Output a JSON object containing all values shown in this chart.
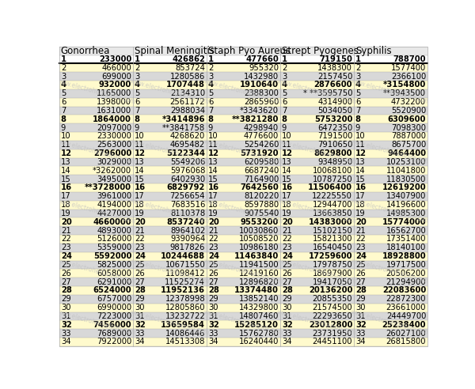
{
  "columns": [
    {
      "header": "Gonorrhea",
      "rows": [
        [
          1,
          "233000"
        ],
        [
          2,
          "466000"
        ],
        [
          3,
          "699000"
        ],
        [
          4,
          "932000"
        ],
        [
          5,
          "1165000"
        ],
        [
          6,
          "1398000"
        ],
        [
          7,
          "1631000"
        ],
        [
          8,
          "1864000"
        ],
        [
          9,
          "2097000"
        ],
        [
          10,
          "2330000"
        ],
        [
          11,
          "2563000"
        ],
        [
          12,
          "2796000"
        ],
        [
          13,
          "3029000"
        ],
        [
          14,
          "*3262000"
        ],
        [
          15,
          "3495000"
        ],
        [
          16,
          "**3728000"
        ],
        [
          17,
          "3961000"
        ],
        [
          18,
          "4194000"
        ],
        [
          19,
          "4427000"
        ],
        [
          20,
          "4660000"
        ],
        [
          21,
          "4893000"
        ],
        [
          22,
          "5126000"
        ],
        [
          23,
          "5359000"
        ],
        [
          24,
          "5592000"
        ],
        [
          25,
          "5825000"
        ],
        [
          26,
          "6058000"
        ],
        [
          27,
          "6291000"
        ],
        [
          28,
          "6524000"
        ],
        [
          29,
          "6757000"
        ],
        [
          30,
          "6990000"
        ],
        [
          31,
          "7223000"
        ],
        [
          32,
          "7456000"
        ],
        [
          33,
          "7689000"
        ],
        [
          34,
          "7922000"
        ]
      ]
    },
    {
      "header": "Spinal Meningitis",
      "rows": [
        [
          1,
          "426862"
        ],
        [
          2,
          "853724"
        ],
        [
          3,
          "1280586"
        ],
        [
          4,
          "1707448"
        ],
        [
          5,
          "2134310"
        ],
        [
          6,
          "2561172"
        ],
        [
          7,
          "2988034"
        ],
        [
          8,
          "*3414896"
        ],
        [
          9,
          "**3841758"
        ],
        [
          10,
          "4268620"
        ],
        [
          11,
          "4695482"
        ],
        [
          12,
          "5122344"
        ],
        [
          13,
          "5549206"
        ],
        [
          14,
          "5976068"
        ],
        [
          15,
          "6402930"
        ],
        [
          16,
          "6829792"
        ],
        [
          17,
          "7256654"
        ],
        [
          18,
          "7683516"
        ],
        [
          19,
          "8110378"
        ],
        [
          20,
          "8537240"
        ],
        [
          21,
          "8964102"
        ],
        [
          22,
          "9390964"
        ],
        [
          23,
          "9817826"
        ],
        [
          24,
          "10244688"
        ],
        [
          25,
          "10671550"
        ],
        [
          26,
          "11098412"
        ],
        [
          27,
          "11525274"
        ],
        [
          28,
          "11952136"
        ],
        [
          29,
          "12378998"
        ],
        [
          30,
          "12805860"
        ],
        [
          31,
          "13232722"
        ],
        [
          32,
          "13659584"
        ],
        [
          33,
          "14086446"
        ],
        [
          34,
          "14513308"
        ]
      ]
    },
    {
      "header": "Staph Pyo Aureus",
      "rows": [
        [
          1,
          "477660"
        ],
        [
          2,
          "955320"
        ],
        [
          3,
          "1432980"
        ],
        [
          4,
          "1910640"
        ],
        [
          5,
          "2388300"
        ],
        [
          6,
          "2865960"
        ],
        [
          7,
          "*3343620"
        ],
        [
          8,
          "**3821280"
        ],
        [
          9,
          "4298940"
        ],
        [
          10,
          "4776600"
        ],
        [
          11,
          "5254260"
        ],
        [
          12,
          "5731920"
        ],
        [
          13,
          "6209580"
        ],
        [
          14,
          "6687240"
        ],
        [
          15,
          "7164900"
        ],
        [
          16,
          "7642560"
        ],
        [
          17,
          "8120220"
        ],
        [
          18,
          "8597880"
        ],
        [
          19,
          "9075540"
        ],
        [
          20,
          "9553200"
        ],
        [
          21,
          "10030860"
        ],
        [
          22,
          "10508520"
        ],
        [
          23,
          "10986180"
        ],
        [
          24,
          "11463840"
        ],
        [
          25,
          "11941500"
        ],
        [
          26,
          "12419160"
        ],
        [
          27,
          "12896820"
        ],
        [
          28,
          "13374480"
        ],
        [
          29,
          "13852140"
        ],
        [
          30,
          "14329800"
        ],
        [
          31,
          "14807460"
        ],
        [
          32,
          "15285120"
        ],
        [
          33,
          "15762780"
        ],
        [
          34,
          "16240440"
        ]
      ]
    },
    {
      "header": "Strept Pyogenes",
      "rows": [
        [
          1,
          "719150"
        ],
        [
          2,
          "1438300"
        ],
        [
          3,
          "2157450"
        ],
        [
          4,
          "2876600"
        ],
        [
          5,
          "* **3595750"
        ],
        [
          6,
          "4314900"
        ],
        [
          7,
          "5034050"
        ],
        [
          8,
          "5753200"
        ],
        [
          9,
          "6472350"
        ],
        [
          10,
          "7191500"
        ],
        [
          11,
          "7910650"
        ],
        [
          12,
          "8629800"
        ],
        [
          13,
          "9348950"
        ],
        [
          14,
          "10068100"
        ],
        [
          15,
          "10787250"
        ],
        [
          16,
          "11506400"
        ],
        [
          17,
          "12225550"
        ],
        [
          18,
          "12944700"
        ],
        [
          19,
          "13663850"
        ],
        [
          20,
          "14383000"
        ],
        [
          21,
          "15102150"
        ],
        [
          22,
          "15821300"
        ],
        [
          23,
          "16540450"
        ],
        [
          24,
          "17259600"
        ],
        [
          25,
          "17978750"
        ],
        [
          26,
          "18697900"
        ],
        [
          27,
          "19417050"
        ],
        [
          28,
          "20136200"
        ],
        [
          29,
          "20855350"
        ],
        [
          30,
          "21574500"
        ],
        [
          31,
          "22293650"
        ],
        [
          32,
          "23012800"
        ],
        [
          33,
          "23731950"
        ],
        [
          34,
          "24451100"
        ]
      ]
    },
    {
      "header": "Syphilis",
      "rows": [
        [
          1,
          "788700"
        ],
        [
          2,
          "1577400"
        ],
        [
          3,
          "2366100"
        ],
        [
          4,
          "*3154800"
        ],
        [
          5,
          "**3943500"
        ],
        [
          6,
          "4732200"
        ],
        [
          7,
          "5520900"
        ],
        [
          8,
          "6309600"
        ],
        [
          9,
          "7098300"
        ],
        [
          10,
          "7887000"
        ],
        [
          11,
          "8675700"
        ],
        [
          12,
          "9464400"
        ],
        [
          13,
          "10253100"
        ],
        [
          14,
          "11041800"
        ],
        [
          15,
          "11830500"
        ],
        [
          16,
          "12619200"
        ],
        [
          17,
          "13407900"
        ],
        [
          18,
          "14196600"
        ],
        [
          19,
          "14985300"
        ],
        [
          20,
          "15774000"
        ],
        [
          21,
          "16562700"
        ],
        [
          22,
          "17351400"
        ],
        [
          23,
          "18140100"
        ],
        [
          24,
          "18928800"
        ],
        [
          25,
          "19717500"
        ],
        [
          26,
          "20506200"
        ],
        [
          27,
          "21294900"
        ],
        [
          28,
          "22083600"
        ],
        [
          29,
          "22872300"
        ],
        [
          30,
          "23661000"
        ],
        [
          31,
          "24449700"
        ],
        [
          32,
          "25238400"
        ],
        [
          33,
          "26027100"
        ],
        [
          34,
          "26815800"
        ]
      ]
    }
  ],
  "num_data_rows": 34,
  "bg_color": "#ffffff",
  "header_bg": "#e8e8e8",
  "row1_bg": "#ffffff",
  "row_even_bg": "#fffacd",
  "row_odd_bg": "#d8d8d8",
  "bold_row_nums": [
    1,
    4,
    8,
    12,
    16,
    20,
    24,
    28,
    32
  ],
  "text_color": "#000000",
  "header_fontsize": 8.5,
  "cell_fontsize": 7.2,
  "watermark_text": "www.electroherbalism.com",
  "watermark_color": "#c0c0c0",
  "border_color": "#aaaaaa",
  "divider_color": "#000000"
}
